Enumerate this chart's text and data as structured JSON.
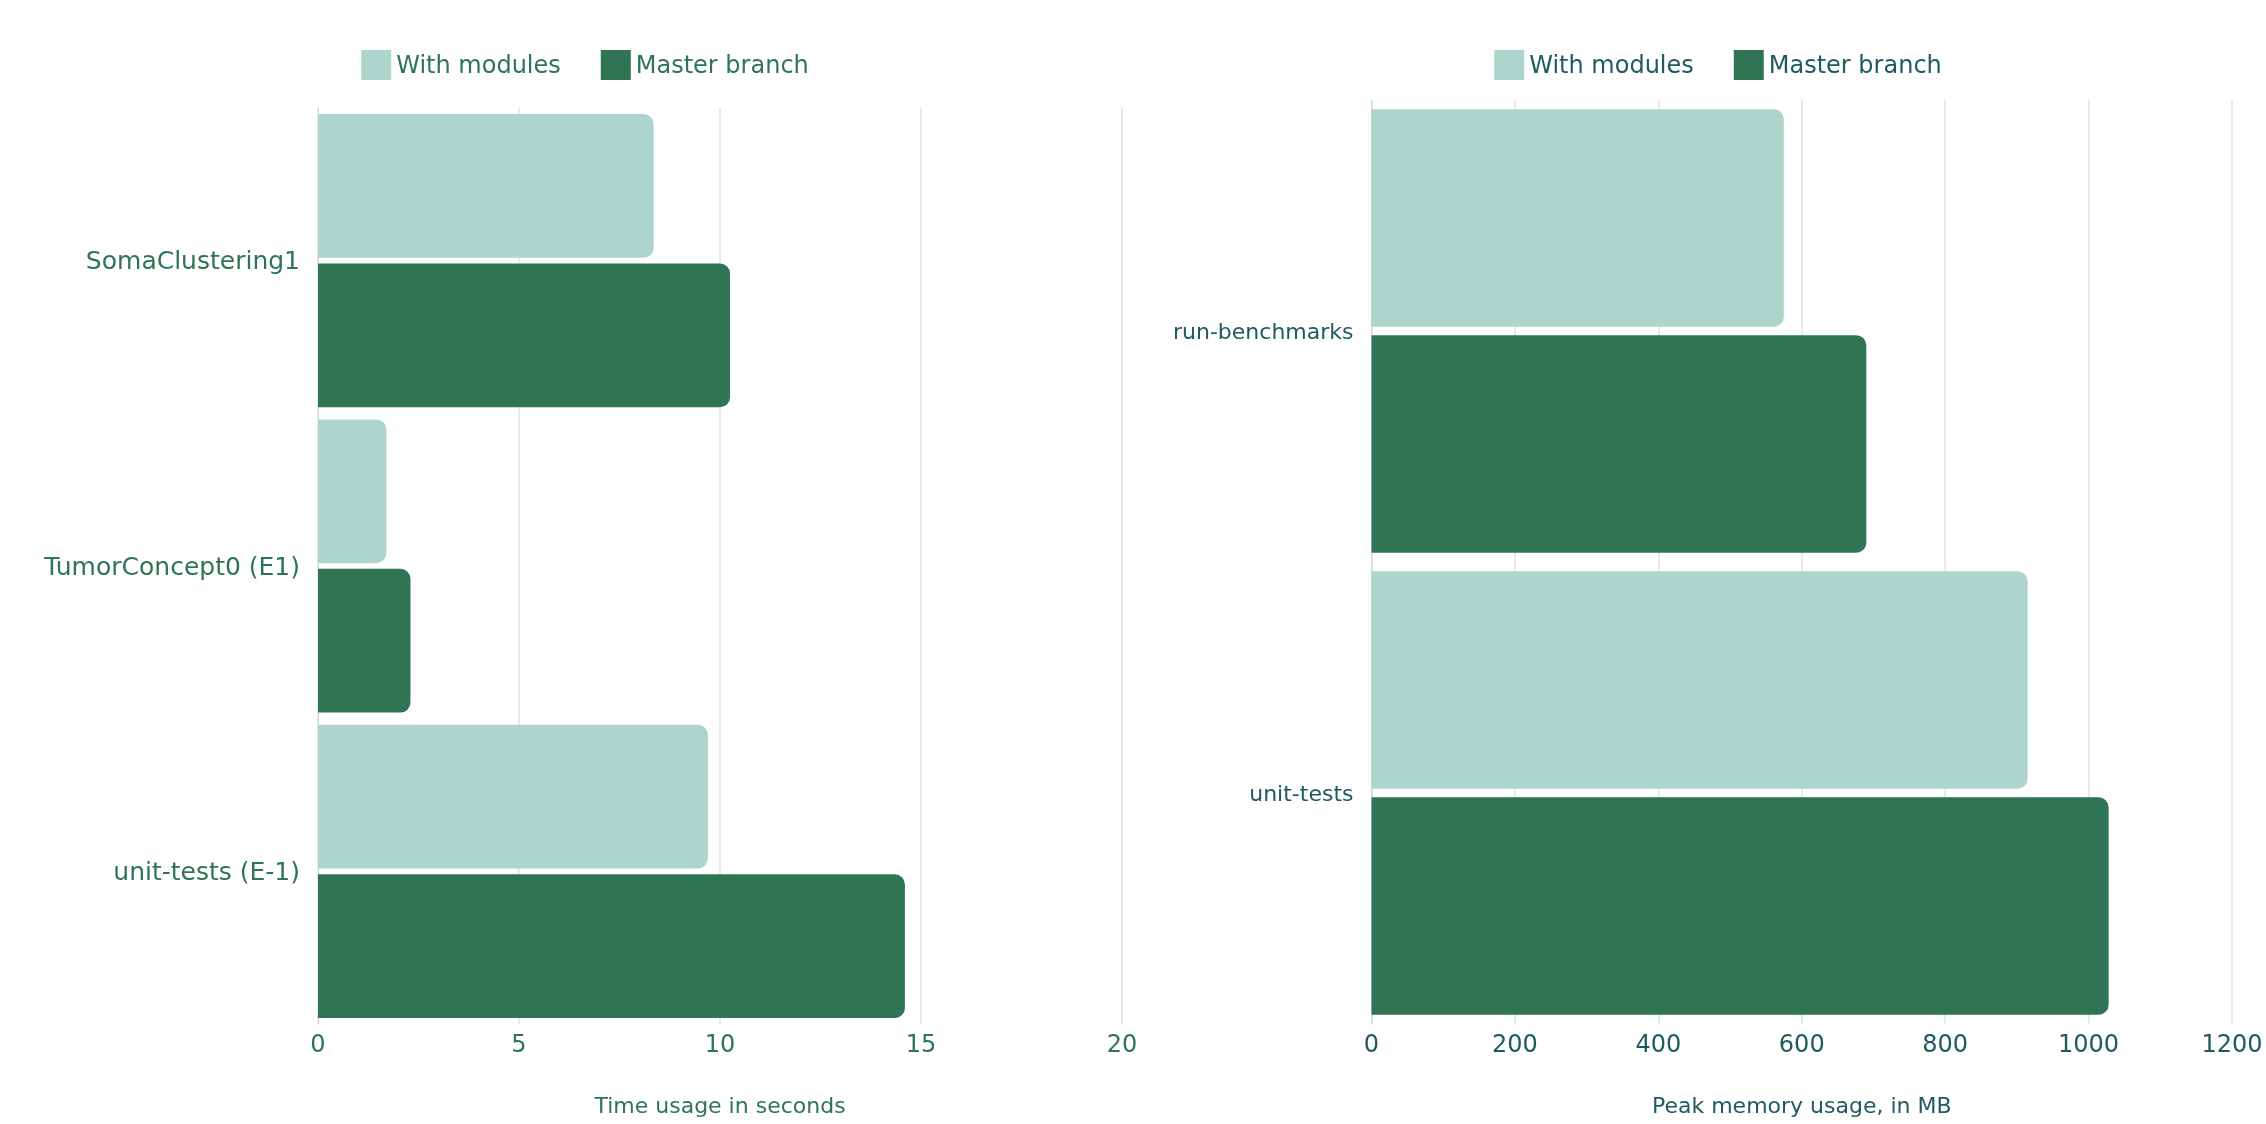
{
  "chart_data": [
    {
      "type": "bar",
      "orientation": "horizontal",
      "xlabel": "Time usage in seconds",
      "categories": [
        "SomaClustering1",
        "TumorConcept0 (E1)",
        "unit-tests (E-1)"
      ],
      "series": [
        {
          "name": "With modules",
          "color": "#aed5cc",
          "values": [
            8.35,
            1.7,
            9.7
          ]
        },
        {
          "name": "Master branch",
          "color": "#2e7455",
          "values": [
            10.25,
            2.3,
            14.6
          ]
        }
      ],
      "xlim": [
        0,
        20
      ],
      "xticks": [
        0,
        5,
        10,
        15,
        20
      ],
      "grid": "x",
      "legend": "top"
    },
    {
      "type": "bar",
      "orientation": "horizontal",
      "xlabel": "Peak memory usage, in MB",
      "categories": [
        "run-benchmarks",
        "unit-tests"
      ],
      "series": [
        {
          "name": "With modules",
          "color": "#aed5cc",
          "values": [
            575,
            915
          ]
        },
        {
          "name": "Master branch",
          "color": "#2e7455",
          "values": [
            690,
            1028
          ]
        }
      ],
      "xlim": [
        0,
        1200
      ],
      "xticks": [
        0,
        200,
        400,
        600,
        800,
        1000,
        1200
      ],
      "grid": "x",
      "legend": "top"
    }
  ]
}
